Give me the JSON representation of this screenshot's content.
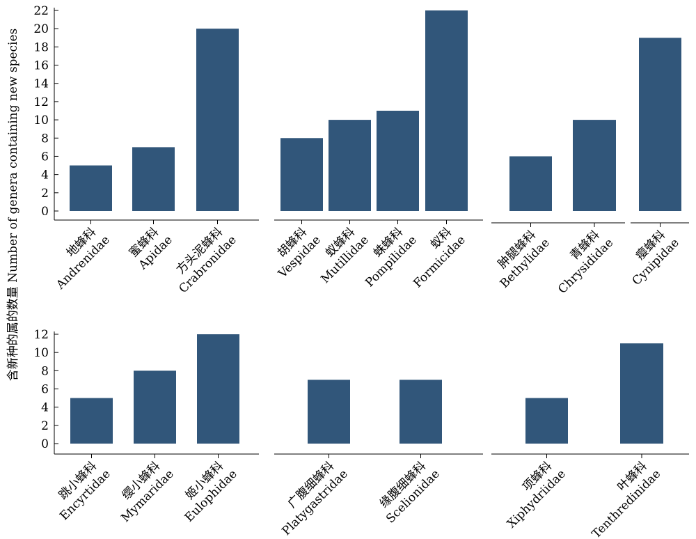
{
  "chart_data": {
    "type": "bar",
    "ylabel": "含新种的属的数量 Number of genera containing new species",
    "bar_color": "#31567a",
    "rows": [
      {
        "ylim": [
          0,
          22
        ],
        "yticks": [
          0,
          2,
          4,
          6,
          8,
          10,
          12,
          14,
          16,
          18,
          20,
          22
        ],
        "panels": [
          {
            "categories": [
              {
                "zh": "地蜂科",
                "en": "Andrenidae"
              },
              {
                "zh": "蜜蜂科",
                "en": "Apidae"
              },
              {
                "zh": "方头泥蜂科",
                "en": "Crabronidae"
              }
            ],
            "values": [
              5,
              7,
              20
            ]
          },
          {
            "categories": [
              {
                "zh": "胡蜂科",
                "en": "Vespidae"
              },
              {
                "zh": "蚁蜂科",
                "en": "Mutillidae"
              },
              {
                "zh": "蛛蜂科",
                "en": "Pompilidae"
              },
              {
                "zh": "蚁科",
                "en": "Formicidae"
              }
            ],
            "values": [
              8,
              10,
              11,
              22
            ]
          },
          {
            "categories": [
              {
                "zh": "肿腿蜂科",
                "en": "Bethylidae"
              },
              {
                "zh": "青蜂科",
                "en": "Chrysididae"
              },
              {
                "zh": "瘿蜂科",
                "en": "Cynipidae"
              }
            ],
            "values": [
              6,
              10,
              19
            ]
          }
        ]
      },
      {
        "ylim": [
          0,
          12
        ],
        "yticks": [
          0,
          2,
          4,
          6,
          8,
          10,
          12
        ],
        "panels": [
          {
            "categories": [
              {
                "zh": "跳小蜂科",
                "en": "Encyrtidae"
              },
              {
                "zh": "缨小蜂科",
                "en": "Mymaridae"
              },
              {
                "zh": "姬小蜂科",
                "en": "Eulophidae"
              }
            ],
            "values": [
              5,
              8,
              12
            ]
          },
          {
            "categories": [
              {
                "zh": "广腹细蜂科",
                "en": "Platygastridae"
              },
              {
                "zh": "缘腹细蜂科",
                "en": "Scelionidae"
              }
            ],
            "values": [
              7,
              7
            ]
          },
          {
            "categories": [
              {
                "zh": "项蜂科",
                "en": "Xiphydriidae"
              },
              {
                "zh": "叶蜂科",
                "en": "Tenthredinidae"
              }
            ],
            "values": [
              5,
              11
            ]
          }
        ]
      }
    ]
  }
}
